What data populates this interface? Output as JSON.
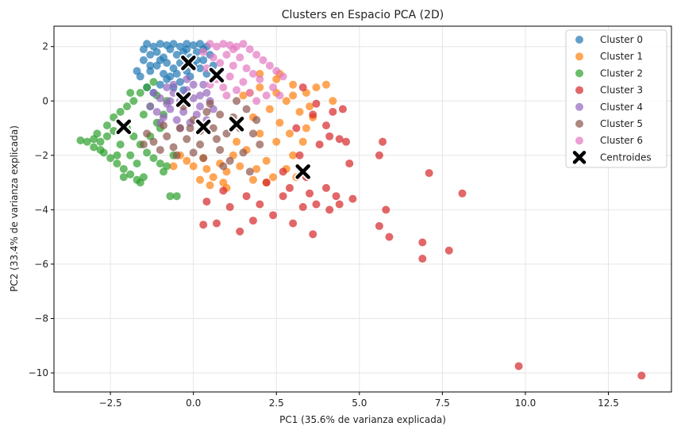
{
  "chart_data": {
    "type": "scatter",
    "title": "Clusters en Espacio PCA (2D)",
    "xlabel": "PC1 (35.6% de varianza explicada)",
    "ylabel": "PC2 (33.4% de varianza explicada)",
    "xlim": [
      -4.2,
      14.4
    ],
    "ylim": [
      -10.7,
      2.75
    ],
    "xticks": [
      -2.5,
      0.0,
      2.5,
      5.0,
      7.5,
      10.0,
      12.5
    ],
    "xtick_labels": [
      "−2.5",
      "0.0",
      "2.5",
      "5.0",
      "7.5",
      "10.0",
      "12.5"
    ],
    "yticks": [
      -10,
      -8,
      -6,
      -4,
      -2,
      0,
      2
    ],
    "ytick_labels": [
      "−10",
      "−8",
      "−6",
      "−4",
      "−2",
      "0",
      "2"
    ],
    "grid": true,
    "legend_position": "top-right",
    "series": [
      {
        "name": "Cluster 0",
        "color": "#1f77b4",
        "points": [
          [
            -1.4,
            2.1
          ],
          [
            -1.2,
            2.0
          ],
          [
            -1.0,
            2.1
          ],
          [
            -0.8,
            2.05
          ],
          [
            -0.6,
            2.1
          ],
          [
            -0.4,
            2.0
          ],
          [
            -0.2,
            2.1
          ],
          [
            0.0,
            2.05
          ],
          [
            0.2,
            2.1
          ],
          [
            0.4,
            2.0
          ],
          [
            -1.5,
            1.5
          ],
          [
            -1.3,
            1.7
          ],
          [
            -1.1,
            1.8
          ],
          [
            -0.9,
            1.6
          ],
          [
            -0.7,
            1.9
          ],
          [
            -0.5,
            1.7
          ],
          [
            -0.3,
            1.8
          ],
          [
            -0.1,
            1.6
          ],
          [
            0.1,
            1.8
          ],
          [
            0.3,
            1.5
          ],
          [
            -1.6,
            0.9
          ],
          [
            -1.3,
            1.1
          ],
          [
            -1.1,
            1.3
          ],
          [
            -0.9,
            1.0
          ],
          [
            -0.6,
            1.2
          ],
          [
            -0.4,
            1.4
          ],
          [
            -0.2,
            1.1
          ],
          [
            0.0,
            1.3
          ],
          [
            0.2,
            1.2
          ],
          [
            0.4,
            1.0
          ],
          [
            -1.0,
            0.6
          ],
          [
            -0.8,
            0.8
          ],
          [
            -0.6,
            0.5
          ],
          [
            -0.4,
            0.7
          ],
          [
            -0.3,
            0.4
          ],
          [
            -1.7,
            1.1
          ],
          [
            -1.4,
            0.5
          ],
          [
            -1.2,
            0.3
          ],
          [
            -0.2,
            1.9
          ],
          [
            0.5,
            1.7
          ],
          [
            -0.8,
            1.4
          ],
          [
            -1.0,
            1.5
          ],
          [
            -0.5,
            1.0
          ],
          [
            0.1,
            1.5
          ],
          [
            0.3,
            1.9
          ],
          [
            -1.5,
            1.9
          ],
          [
            -1.3,
            1.3
          ],
          [
            -0.7,
            0.9
          ],
          [
            -0.1,
            0.9
          ],
          [
            0.6,
            1.3
          ]
        ]
      },
      {
        "name": "Cluster 1",
        "color": "#ff7f0e",
        "points": [
          [
            1.5,
            0.2
          ],
          [
            2.0,
            0.5
          ],
          [
            2.5,
            0.3
          ],
          [
            3.0,
            0.6
          ],
          [
            2.8,
            0.0
          ],
          [
            2.3,
            -0.3
          ],
          [
            1.8,
            -0.6
          ],
          [
            2.6,
            -0.8
          ],
          [
            3.2,
            -0.4
          ],
          [
            3.5,
            -0.2
          ],
          [
            2.0,
            -1.2
          ],
          [
            2.5,
            -1.5
          ],
          [
            1.6,
            -1.8
          ],
          [
            1.2,
            -2.0
          ],
          [
            0.8,
            -2.3
          ],
          [
            0.4,
            -2.5
          ],
          [
            0.0,
            -2.4
          ],
          [
            -0.2,
            -2.2
          ],
          [
            0.6,
            -2.8
          ],
          [
            1.0,
            -2.6
          ],
          [
            1.4,
            -2.4
          ],
          [
            2.2,
            -2.2
          ],
          [
            2.8,
            -2.5
          ],
          [
            3.0,
            -2.0
          ],
          [
            2.4,
            -2.8
          ],
          [
            0.2,
            -2.9
          ],
          [
            0.9,
            -3.0
          ],
          [
            1.8,
            -2.9
          ],
          [
            3.4,
            -1.0
          ],
          [
            3.0,
            0.2
          ],
          [
            2.0,
            1.0
          ],
          [
            2.6,
            1.0
          ],
          [
            3.4,
            0.3
          ],
          [
            3.7,
            0.5
          ],
          [
            4.0,
            0.6
          ],
          [
            -0.6,
            -2.4
          ],
          [
            0.3,
            -2.1
          ],
          [
            1.3,
            -1.5
          ],
          [
            2.9,
            -1.2
          ],
          [
            3.3,
            -1.5
          ],
          [
            1.9,
            -2.5
          ],
          [
            0.5,
            -3.1
          ],
          [
            2.2,
            -3.0
          ],
          [
            4.2,
            0.0
          ],
          [
            3.6,
            -0.6
          ],
          [
            1.0,
            -3.2
          ],
          [
            -0.4,
            -2.0
          ],
          [
            2.5,
            0.8
          ],
          [
            1.7,
            0.3
          ],
          [
            3.1,
            -2.8
          ]
        ]
      },
      {
        "name": "Cluster 2",
        "color": "#2ca02c",
        "points": [
          [
            -3.4,
            -1.45
          ],
          [
            -3.2,
            -1.5
          ],
          [
            -3.0,
            -1.4
          ],
          [
            -2.8,
            -1.5
          ],
          [
            -2.6,
            -1.3
          ],
          [
            -3.0,
            -1.7
          ],
          [
            -2.7,
            -1.9
          ],
          [
            -2.5,
            -2.1
          ],
          [
            -2.3,
            -2.3
          ],
          [
            -2.1,
            -2.5
          ],
          [
            -1.9,
            -2.7
          ],
          [
            -1.7,
            -2.9
          ],
          [
            -1.5,
            -2.8
          ],
          [
            -2.6,
            -0.9
          ],
          [
            -2.4,
            -0.6
          ],
          [
            -2.2,
            -0.4
          ],
          [
            -2.0,
            -0.2
          ],
          [
            -1.8,
            0.0
          ],
          [
            -1.6,
            0.3
          ],
          [
            -1.4,
            0.5
          ],
          [
            -1.2,
            0.7
          ],
          [
            -2.0,
            -1.0
          ],
          [
            -1.8,
            -1.3
          ],
          [
            -1.6,
            -1.6
          ],
          [
            -1.4,
            -1.9
          ],
          [
            -1.2,
            -2.1
          ],
          [
            -1.0,
            -2.3
          ],
          [
            -1.5,
            -0.5
          ],
          [
            -1.3,
            -0.2
          ],
          [
            -1.1,
            0.2
          ],
          [
            -2.2,
            -1.6
          ],
          [
            -1.9,
            -2.0
          ],
          [
            -1.7,
            -2.3
          ],
          [
            -0.8,
            -2.4
          ],
          [
            -0.9,
            -2.6
          ],
          [
            -0.7,
            -3.5
          ],
          [
            -0.5,
            -3.5
          ],
          [
            -1.0,
            -1.0
          ],
          [
            -0.9,
            -0.5
          ],
          [
            -0.8,
            0.0
          ],
          [
            -2.9,
            -1.2
          ],
          [
            -2.4,
            -1.1
          ],
          [
            -1.3,
            -1.3
          ],
          [
            -1.1,
            -0.8
          ],
          [
            -2.8,
            -1.8
          ],
          [
            -2.1,
            -2.8
          ],
          [
            -1.6,
            -3.0
          ],
          [
            -0.6,
            -2.0
          ],
          [
            -1.9,
            0.3
          ],
          [
            -2.3,
            -2.0
          ]
        ]
      },
      {
        "name": "Cluster 3",
        "color": "#d62728",
        "points": [
          [
            3.3,
            0.5
          ],
          [
            3.7,
            -0.1
          ],
          [
            4.2,
            -0.4
          ],
          [
            4.5,
            -0.3
          ],
          [
            4.0,
            -0.9
          ],
          [
            4.4,
            -1.4
          ],
          [
            4.6,
            -1.5
          ],
          [
            3.8,
            -1.6
          ],
          [
            3.2,
            -2.0
          ],
          [
            2.7,
            -2.6
          ],
          [
            3.5,
            -3.4
          ],
          [
            4.0,
            -3.2
          ],
          [
            4.3,
            -3.5
          ],
          [
            4.4,
            -3.8
          ],
          [
            4.8,
            -3.6
          ],
          [
            4.7,
            -2.3
          ],
          [
            5.7,
            -1.5
          ],
          [
            5.6,
            -2.0
          ],
          [
            5.8,
            -4.0
          ],
          [
            5.6,
            -4.6
          ],
          [
            5.9,
            -5.0
          ],
          [
            6.9,
            -5.2
          ],
          [
            6.9,
            -5.8
          ],
          [
            7.1,
            -2.65
          ],
          [
            7.7,
            -5.5
          ],
          [
            8.1,
            -3.4
          ],
          [
            9.8,
            -9.75
          ],
          [
            13.5,
            -10.1
          ],
          [
            3.0,
            -4.5
          ],
          [
            3.6,
            -4.9
          ],
          [
            2.4,
            -4.2
          ],
          [
            2.0,
            -3.8
          ],
          [
            1.4,
            -4.8
          ],
          [
            0.7,
            -4.5
          ],
          [
            0.4,
            -3.7
          ],
          [
            1.1,
            -3.9
          ],
          [
            1.8,
            -4.4
          ],
          [
            2.7,
            -3.5
          ],
          [
            3.3,
            -3.9
          ],
          [
            3.7,
            -3.8
          ],
          [
            4.1,
            -4.0
          ],
          [
            2.2,
            -3.0
          ],
          [
            1.6,
            -3.5
          ],
          [
            0.9,
            -3.3
          ],
          [
            0.3,
            -4.55
          ],
          [
            3.1,
            -1.0
          ],
          [
            3.6,
            -0.5
          ],
          [
            4.1,
            -1.3
          ],
          [
            2.9,
            -3.2
          ],
          [
            3.4,
            -2.8
          ]
        ]
      },
      {
        "name": "Cluster 4",
        "color": "#9467bd",
        "points": [
          [
            -1.2,
            0.3
          ],
          [
            -1.0,
            0.1
          ],
          [
            -0.8,
            -0.1
          ],
          [
            -0.6,
            0.3
          ],
          [
            -0.4,
            0.0
          ],
          [
            -0.2,
            0.4
          ],
          [
            0.0,
            0.1
          ],
          [
            0.2,
            -0.2
          ],
          [
            0.4,
            0.3
          ],
          [
            -1.1,
            -0.4
          ],
          [
            -0.9,
            -0.6
          ],
          [
            -0.7,
            -0.3
          ],
          [
            -0.5,
            -0.7
          ],
          [
            -0.3,
            -0.4
          ],
          [
            -0.1,
            -0.8
          ],
          [
            0.1,
            -0.5
          ],
          [
            0.3,
            0.6
          ],
          [
            0.5,
            0.0
          ],
          [
            -1.3,
            -0.2
          ],
          [
            -0.6,
            0.6
          ],
          [
            -0.2,
            0.8
          ],
          [
            0.0,
            0.6
          ],
          [
            0.2,
            0.2
          ],
          [
            -0.8,
            0.5
          ],
          [
            -1.0,
            -0.8
          ],
          [
            -0.4,
            -1.0
          ],
          [
            0.6,
            -0.3
          ],
          [
            -0.3,
            0.2
          ],
          [
            0.4,
            -0.7
          ],
          [
            -0.7,
            0.0
          ]
        ]
      },
      {
        "name": "Cluster 5",
        "color": "#8c564b",
        "points": [
          [
            -1.4,
            -1.2
          ],
          [
            -1.2,
            -1.5
          ],
          [
            -1.0,
            -1.8
          ],
          [
            -0.8,
            -1.3
          ],
          [
            -0.6,
            -1.7
          ],
          [
            -0.4,
            -1.0
          ],
          [
            -0.2,
            -1.4
          ],
          [
            0.0,
            -0.7
          ],
          [
            0.2,
            -1.1
          ],
          [
            0.4,
            -0.4
          ],
          [
            0.6,
            -1.0
          ],
          [
            0.8,
            -0.5
          ],
          [
            1.0,
            -1.2
          ],
          [
            1.2,
            -0.6
          ],
          [
            1.4,
            -1.0
          ],
          [
            1.6,
            -0.3
          ],
          [
            1.8,
            -1.2
          ],
          [
            2.0,
            -1.6
          ],
          [
            0.0,
            -1.9
          ],
          [
            0.3,
            -2.1
          ],
          [
            -0.5,
            -2.0
          ],
          [
            0.8,
            -1.8
          ],
          [
            1.1,
            -2.2
          ],
          [
            1.5,
            -1.9
          ],
          [
            -0.9,
            -0.9
          ],
          [
            0.5,
            -0.1
          ],
          [
            -0.3,
            -0.2
          ],
          [
            1.3,
            0.0
          ],
          [
            0.9,
            -2.4
          ],
          [
            1.7,
            -2.6
          ],
          [
            -1.5,
            -1.6
          ],
          [
            0.7,
            -1.4
          ],
          [
            1.9,
            -0.7
          ],
          [
            -0.1,
            -1.0
          ],
          [
            0.2,
            -1.6
          ]
        ]
      },
      {
        "name": "Cluster 6",
        "color": "#e377c2",
        "points": [
          [
            0.5,
            2.1
          ],
          [
            0.7,
            2.0
          ],
          [
            0.9,
            2.1
          ],
          [
            1.1,
            2.05
          ],
          [
            1.3,
            2.0
          ],
          [
            1.5,
            2.1
          ],
          [
            1.7,
            1.9
          ],
          [
            1.9,
            1.7
          ],
          [
            2.1,
            1.5
          ],
          [
            2.3,
            1.3
          ],
          [
            2.5,
            1.1
          ],
          [
            2.7,
            0.9
          ],
          [
            0.6,
            1.6
          ],
          [
            0.8,
            1.4
          ],
          [
            1.0,
            1.7
          ],
          [
            1.2,
            1.3
          ],
          [
            1.4,
            1.6
          ],
          [
            1.6,
            1.2
          ],
          [
            1.8,
            1.0
          ],
          [
            2.0,
            0.8
          ],
          [
            0.7,
            0.8
          ],
          [
            0.9,
            0.5
          ],
          [
            1.1,
            0.9
          ],
          [
            1.3,
            0.4
          ],
          [
            1.5,
            0.7
          ],
          [
            1.7,
            0.3
          ],
          [
            2.2,
            0.2
          ],
          [
            0.4,
            1.2
          ],
          [
            0.5,
            0.6
          ],
          [
            1.0,
            0.2
          ],
          [
            2.4,
            0.5
          ],
          [
            0.3,
            1.8
          ],
          [
            1.9,
            0.0
          ],
          [
            2.6,
            0.2
          ],
          [
            1.2,
            1.9
          ]
        ]
      }
    ],
    "centroids": {
      "name": "Centroides",
      "color": "#000000",
      "points": [
        [
          -0.15,
          1.4
        ],
        [
          -2.1,
          -0.95
        ],
        [
          0.7,
          0.95
        ],
        [
          -0.3,
          0.05
        ],
        [
          0.3,
          -0.95
        ],
        [
          1.3,
          -0.85
        ],
        [
          3.3,
          -2.6
        ]
      ]
    }
  }
}
